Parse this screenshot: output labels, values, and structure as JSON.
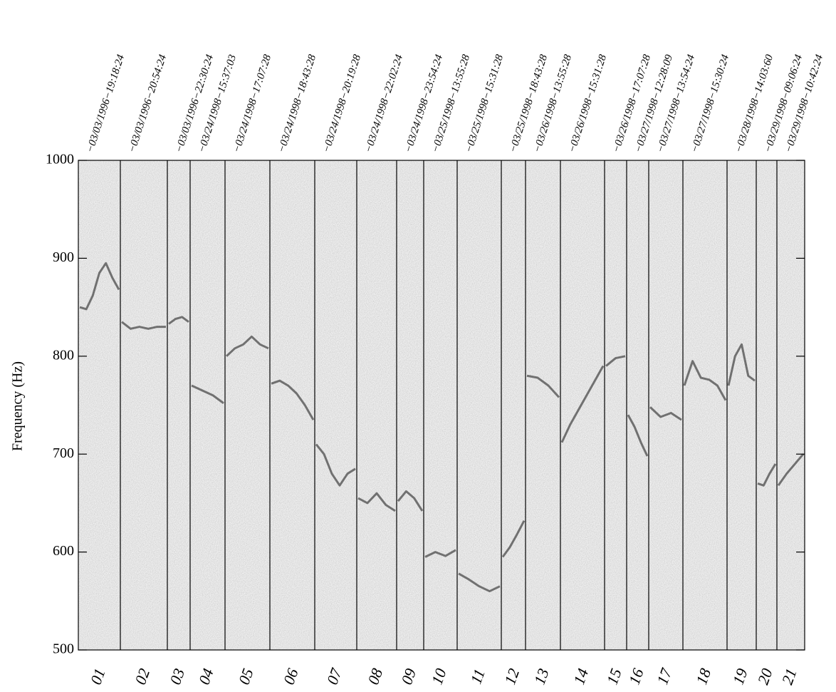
{
  "chart_data": {
    "type": "segmented-track",
    "y_label": "Frequency (Hz)",
    "ylim": [
      500,
      1000
    ],
    "yticks": [
      500,
      600,
      700,
      800,
      900,
      1000
    ],
    "color": "#333333",
    "segments": [
      {
        "label": "01",
        "timestamp": "−03/03/1996−19:18:24",
        "values": [
          850,
          848,
          862,
          885,
          895,
          880,
          868
        ]
      },
      {
        "label": "02",
        "timestamp": "−03/03/1996−20:54:24",
        "values": [
          835,
          828,
          830,
          828,
          830,
          830
        ]
      },
      {
        "label": "03",
        "timestamp": "−03/03/1996−22:30:24",
        "values": [
          833,
          838,
          840,
          835
        ]
      },
      {
        "label": "04",
        "timestamp": "−03/24/1998−15:37:03",
        "values": [
          770,
          765,
          760,
          752
        ]
      },
      {
        "label": "05",
        "timestamp": "−03/24/1998−17:07:28",
        "values": [
          800,
          808,
          812,
          820,
          812,
          808
        ]
      },
      {
        "label": "06",
        "timestamp": "−03/24/1998−18:43:28",
        "values": [
          772,
          775,
          770,
          762,
          750,
          735
        ]
      },
      {
        "label": "07",
        "timestamp": "−03/24/1998−20:19:28",
        "values": [
          710,
          700,
          680,
          668,
          680,
          685
        ]
      },
      {
        "label": "08",
        "timestamp": "−03/24/1998−22:02:24",
        "values": [
          655,
          650,
          660,
          648,
          642
        ]
      },
      {
        "label": "09",
        "timestamp": "−03/24/1998−23:54:24",
        "values": [
          652,
          662,
          655,
          642
        ]
      },
      {
        "label": "10",
        "timestamp": "−03/25/1998−13:55:28",
        "values": [
          595,
          600,
          596,
          602
        ]
      },
      {
        "label": "11",
        "timestamp": "−03/25/1998−15:31:28",
        "values": [
          578,
          572,
          565,
          560,
          565
        ]
      },
      {
        "label": "12",
        "timestamp": "−03/25/1998−18:43:28",
        "values": [
          595,
          605,
          618,
          632
        ]
      },
      {
        "label": "13",
        "timestamp": "−03/26/1998−13:55:28",
        "values": [
          780,
          778,
          770,
          758
        ]
      },
      {
        "label": "14",
        "timestamp": "−03/26/1998−15:31:28",
        "values": [
          712,
          730,
          745,
          760,
          775,
          790
        ]
      },
      {
        "label": "15",
        "timestamp": "−03/26/1998−17:07:28",
        "values": [
          790,
          798,
          800
        ]
      },
      {
        "label": "16",
        "timestamp": "−03/27/1998−12:28:09",
        "values": [
          740,
          728,
          712,
          698
        ]
      },
      {
        "label": "17",
        "timestamp": "−03/27/1998−13:54:24",
        "values": [
          748,
          738,
          742,
          735
        ]
      },
      {
        "label": "18",
        "timestamp": "−03/27/1998−15:30:24",
        "values": [
          770,
          795,
          778,
          776,
          770,
          755
        ]
      },
      {
        "label": "19",
        "timestamp": "−03/28/1998−14:03:60",
        "values": [
          770,
          800,
          812,
          780,
          775
        ]
      },
      {
        "label": "20",
        "timestamp": "−03/29/1998−09:06:24",
        "values": [
          670,
          668,
          680,
          690
        ]
      },
      {
        "label": "21",
        "timestamp": "−03/29/1998−10:42:24",
        "values": [
          668,
          680,
          690,
          700
        ]
      }
    ]
  }
}
